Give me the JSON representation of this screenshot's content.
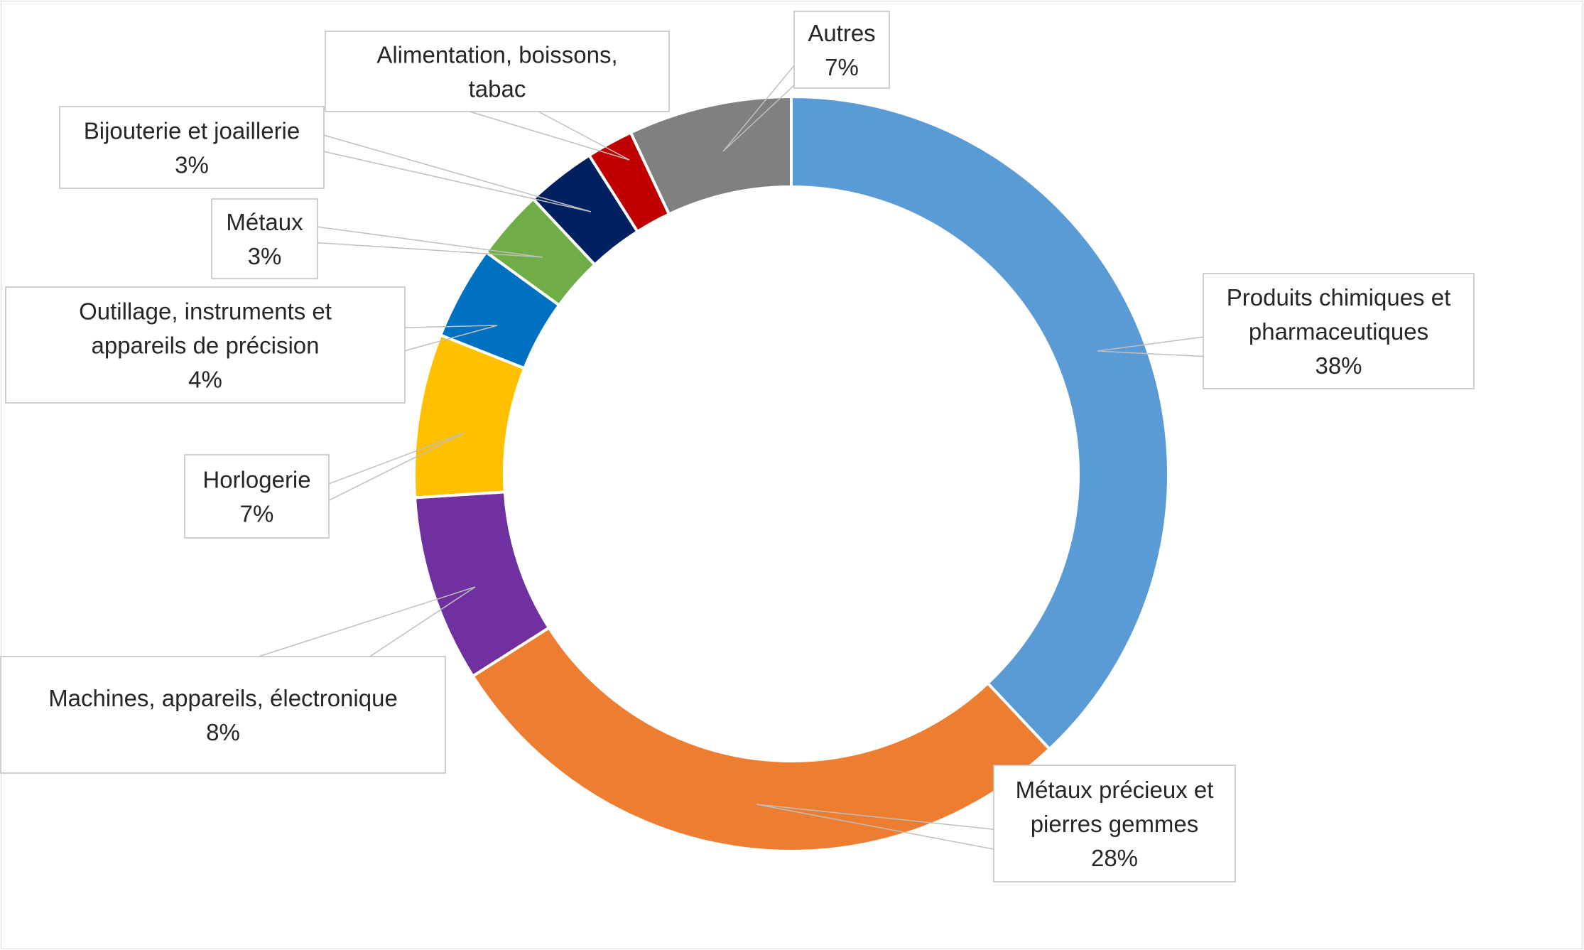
{
  "chart_data": {
    "type": "pie",
    "donut": true,
    "title": "",
    "legend": "none",
    "slices": [
      {
        "label": "Produits chimiques et pharmaceutiques",
        "lines": [
          "Produits chimiques et",
          "pharmaceutiques"
        ],
        "value": 38,
        "display": "38%",
        "color": "#5b9bd5"
      },
      {
        "label": "Métaux précieux et pierres gemmes",
        "lines": [
          "Métaux précieux et",
          "pierres gemmes"
        ],
        "value": 28,
        "display": "28%",
        "color": "#ed7d31"
      },
      {
        "label": "Machines, appareils, électronique",
        "lines": [
          "Machines, appareils, électronique"
        ],
        "value": 8,
        "display": "8%",
        "color": "#7030a0"
      },
      {
        "label": "Horlogerie",
        "lines": [
          "Horlogerie"
        ],
        "value": 7,
        "display": "7%",
        "color": "#ffc000"
      },
      {
        "label": "Outillage, instruments et appareils de précision",
        "lines": [
          "Outillage, instruments et",
          "appareils de précision"
        ],
        "value": 4,
        "display": "4%",
        "color": "#0070c0"
      },
      {
        "label": "Métaux",
        "lines": [
          "Métaux"
        ],
        "value": 3,
        "display": "3%",
        "color": "#70ad47"
      },
      {
        "label": "Bijouterie et joaillerie",
        "lines": [
          "Bijouterie et joaillerie"
        ],
        "value": 3,
        "display": "3%",
        "color": "#002060"
      },
      {
        "label": "Alimentation, boissons, tabac",
        "lines": [
          "Alimentation, boissons,",
          "tabac"
        ],
        "value": 2,
        "display": "",
        "color": "#c00000"
      },
      {
        "label": "Autres",
        "lines": [
          "Autres"
        ],
        "value": 7,
        "display": "7%",
        "color": "#808080"
      }
    ]
  }
}
